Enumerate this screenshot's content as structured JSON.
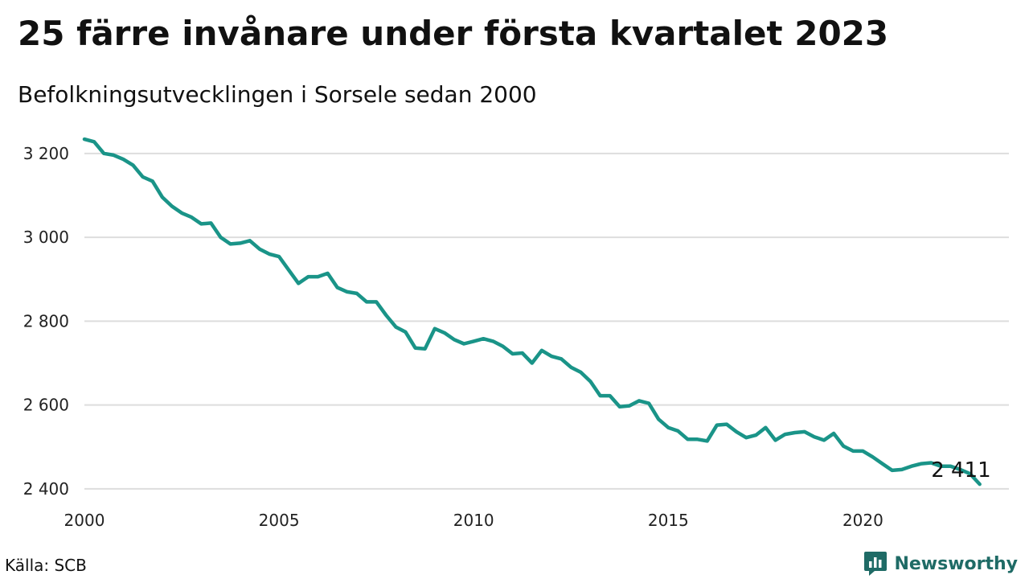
{
  "header": {
    "title": "25 färre invånare under första kvartalet 2023",
    "subtitle": "Befolkningsutvecklingen i Sorsele sedan 2000"
  },
  "footer": {
    "source": "Källa: SCB",
    "brand": "Newsworthy",
    "brand_icon": "bar-chart-icon"
  },
  "colors": {
    "line": "#1a9488",
    "grid": "#dddddd",
    "brand": "#1f6b66"
  },
  "chart_data": {
    "type": "line",
    "title": "",
    "xlabel": "",
    "ylabel": "",
    "x_ticks": [
      2000,
      2005,
      2010,
      2015,
      2020
    ],
    "x_tick_labels": [
      "2000",
      "2005",
      "2010",
      "2015",
      "2020"
    ],
    "y_ticks": [
      2400,
      2600,
      2800,
      3000,
      3200
    ],
    "y_tick_labels": [
      "2 400",
      "2 600",
      "2 800",
      "3 000",
      "3 200"
    ],
    "xlim": [
      2000,
      2023.75
    ],
    "ylim": [
      2392,
      3240
    ],
    "grid": "horizontal",
    "end_label": "2 411",
    "series": [
      {
        "x": [
          "2000 Q1",
          "2000 Q2",
          "2000 Q3",
          "2000 Q4",
          "2001 Q1",
          "2001 Q2",
          "2001 Q3",
          "2001 Q4",
          "2002 Q1",
          "2002 Q2",
          "2002 Q3",
          "2002 Q4",
          "2003 Q1",
          "2003 Q2",
          "2003 Q3",
          "2003 Q4",
          "2004 Q1",
          "2004 Q2",
          "2004 Q3",
          "2004 Q4",
          "2005 Q1",
          "2005 Q2",
          "2005 Q3",
          "2005 Q4",
          "2006 Q1",
          "2006 Q2",
          "2006 Q3",
          "2006 Q4",
          "2007 Q1",
          "2007 Q2",
          "2007 Q3",
          "2007 Q4",
          "2008 Q1",
          "2008 Q2",
          "2008 Q3",
          "2008 Q4",
          "2009 Q1",
          "2009 Q2",
          "2009 Q3",
          "2009 Q4",
          "2010 Q1",
          "2010 Q2",
          "2010 Q3",
          "2010 Q4",
          "2011 Q1",
          "2011 Q2",
          "2011 Q3",
          "2011 Q4",
          "2012 Q1",
          "2012 Q2",
          "2012 Q3",
          "2012 Q4",
          "2013 Q1",
          "2013 Q2",
          "2013 Q3",
          "2013 Q4",
          "2014 Q1",
          "2014 Q2",
          "2014 Q3",
          "2014 Q4",
          "2015 Q1",
          "2015 Q2",
          "2015 Q3",
          "2015 Q4",
          "2016 Q1",
          "2016 Q2",
          "2016 Q3",
          "2016 Q4",
          "2017 Q1",
          "2017 Q2",
          "2017 Q3",
          "2017 Q4",
          "2018 Q1",
          "2018 Q2",
          "2018 Q3",
          "2018 Q4",
          "2019 Q1",
          "2019 Q2",
          "2019 Q3",
          "2019 Q4",
          "2020 Q1",
          "2020 Q2",
          "2020 Q3",
          "2020 Q4",
          "2021 Q1",
          "2021 Q2",
          "2021 Q3",
          "2021 Q4",
          "2022 Q1",
          "2022 Q2",
          "2022 Q3",
          "2022 Q4",
          "2023 Q1"
        ],
        "values": [
          3234,
          3228,
          3200,
          3196,
          3186,
          3172,
          3144,
          3134,
          3096,
          3074,
          3058,
          3048,
          3032,
          3034,
          3000,
          2984,
          2986,
          2992,
          2972,
          2960,
          2954,
          2922,
          2890,
          2906,
          2906,
          2914,
          2880,
          2870,
          2866,
          2846,
          2846,
          2814,
          2786,
          2774,
          2736,
          2734,
          2782,
          2772,
          2756,
          2746,
          2752,
          2758,
          2752,
          2740,
          2722,
          2724,
          2700,
          2730,
          2716,
          2710,
          2690,
          2678,
          2656,
          2622,
          2622,
          2596,
          2598,
          2610,
          2604,
          2566,
          2546,
          2538,
          2518,
          2518,
          2514,
          2552,
          2554,
          2536,
          2522,
          2528,
          2546,
          2516,
          2530,
          2534,
          2536,
          2524,
          2516,
          2532,
          2502,
          2490,
          2490,
          2476,
          2460,
          2444,
          2446,
          2454,
          2460,
          2462,
          2454,
          2454,
          2446,
          2436,
          2411
        ]
      }
    ]
  }
}
